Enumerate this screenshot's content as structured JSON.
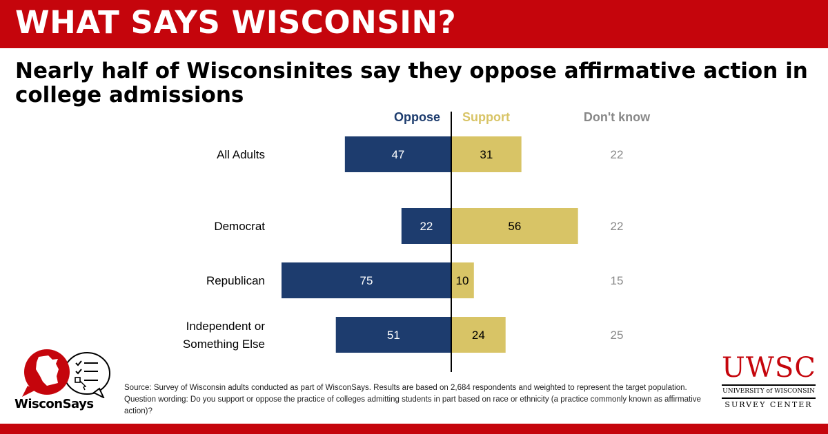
{
  "banner": {
    "title": "WHAT SAYS WISCONSIN?"
  },
  "headline": "Nearly half of Wisconsinites say they oppose affirmative action in college admissions",
  "colors": {
    "brand_red": "#c5050c",
    "oppose": "#1d3c6e",
    "support": "#d8c466",
    "dont_know": "#888888"
  },
  "chart_data": {
    "type": "bar",
    "orientation": "horizontal-diverging",
    "categories": [
      {
        "label": [
          "All Adults"
        ],
        "group": "overall"
      },
      {
        "label": [
          "Democrat"
        ],
        "group": "party"
      },
      {
        "label": [
          "Republican"
        ],
        "group": "party"
      },
      {
        "label": [
          "Independent or",
          "Something Else"
        ],
        "group": "party"
      }
    ],
    "series": [
      {
        "name": "Oppose",
        "direction": "left",
        "values": [
          47,
          22,
          75,
          51
        ]
      },
      {
        "name": "Support",
        "direction": "right",
        "values": [
          31,
          56,
          10,
          24
        ]
      },
      {
        "name": "Don't know",
        "direction": "text",
        "values": [
          22,
          22,
          15,
          25
        ]
      }
    ],
    "xlim": [
      0,
      100
    ],
    "grid": false,
    "legend": "top"
  },
  "source_text": "Source: Survey of Wisconsin adults conducted as part of WisconSays. Results are based on 2,684 respondents and weighted to represent the target population. Question wording: Do you support or oppose the practice of colleges admitting students in part based on race or ethnicity (a practice commonly known as affirmative action)?",
  "logo_left": {
    "wordmark": "WisconSays"
  },
  "logo_right": {
    "main": "UWSC",
    "line1": "UNIVERSITY of WISCONSIN",
    "line2": "SURVEY CENTER"
  }
}
